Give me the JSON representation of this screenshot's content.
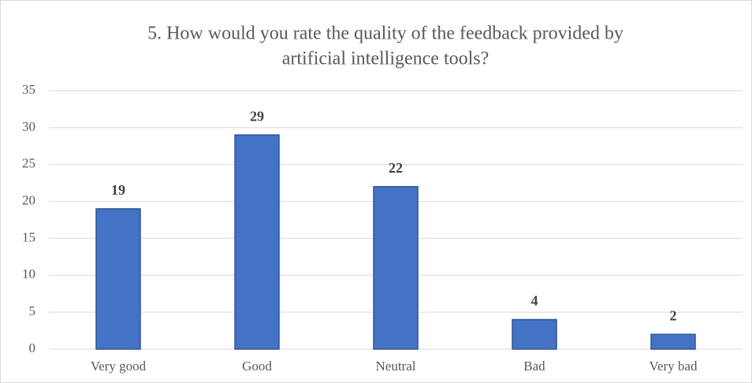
{
  "chart_data": {
    "type": "bar",
    "title": [
      "5. How would you rate the quality of the feedback provided by",
      "artificial intelligence tools?"
    ],
    "categories": [
      "Very good",
      "Good",
      "Neutral",
      "Bad",
      "Very bad"
    ],
    "values": [
      19,
      29,
      22,
      4,
      2
    ],
    "color": "#4472c4",
    "ylim": [
      0,
      35
    ],
    "yticks": [
      0,
      5,
      10,
      15,
      20,
      25,
      30,
      35
    ],
    "grid": true
  }
}
